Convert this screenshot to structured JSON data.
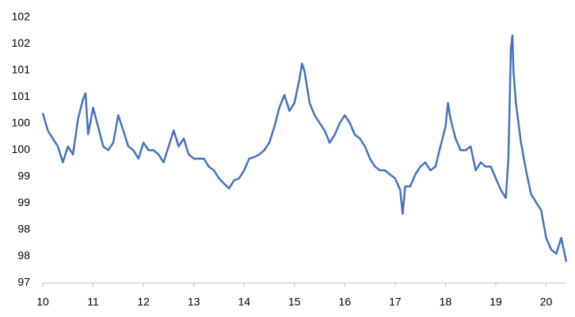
{
  "chart_data": {
    "type": "line",
    "x": [
      10,
      10.1,
      10.2,
      10.3,
      10.4,
      10.5,
      10.6,
      10.7,
      10.8,
      10.85,
      10.9,
      11,
      11.1,
      11.2,
      11.3,
      11.4,
      11.5,
      11.6,
      11.7,
      11.8,
      11.9,
      12,
      12.1,
      12.2,
      12.3,
      12.4,
      12.5,
      12.6,
      12.7,
      12.8,
      12.9,
      13,
      13.1,
      13.2,
      13.3,
      13.4,
      13.5,
      13.6,
      13.7,
      13.8,
      13.9,
      14,
      14.1,
      14.2,
      14.3,
      14.4,
      14.5,
      14.6,
      14.7,
      14.8,
      14.9,
      15,
      15.1,
      15.15,
      15.2,
      15.3,
      15.4,
      15.5,
      15.6,
      15.7,
      15.8,
      15.9,
      16,
      16.1,
      16.2,
      16.3,
      16.4,
      16.5,
      16.6,
      16.7,
      16.8,
      16.9,
      17,
      17.1,
      17.15,
      17.2,
      17.3,
      17.4,
      17.5,
      17.6,
      17.7,
      17.8,
      17.9,
      18,
      18.05,
      18.1,
      18.2,
      18.3,
      18.4,
      18.5,
      18.6,
      18.7,
      18.8,
      18.9,
      19,
      19.1,
      19.2,
      19.25,
      19.3,
      19.33,
      19.35,
      19.4,
      19.5,
      19.6,
      19.7,
      19.8,
      19.9,
      20,
      20.1,
      20.2,
      20.3,
      20.4
    ],
    "series": [
      {
        "color": "#4472c4",
        "values": [
          100.2,
          99.87,
          99.72,
          99.57,
          99.27,
          99.57,
          99.42,
          100.09,
          100.46,
          100.57,
          99.8,
          100.3,
          99.94,
          99.57,
          99.5,
          99.64,
          100.16,
          99.87,
          99.57,
          99.5,
          99.34,
          99.64,
          99.5,
          99.5,
          99.42,
          99.27,
          99.57,
          99.87,
          99.57,
          99.72,
          99.42,
          99.34,
          99.34,
          99.34,
          99.19,
          99.12,
          98.97,
          98.87,
          98.78,
          98.93,
          98.97,
          99.12,
          99.34,
          99.37,
          99.42,
          99.5,
          99.64,
          99.94,
          100.3,
          100.54,
          100.24,
          100.39,
          100.84,
          101.13,
          100.99,
          100.39,
          100.16,
          100.01,
          99.87,
          99.64,
          99.79,
          100.01,
          100.16,
          100.01,
          99.79,
          99.72,
          99.57,
          99.34,
          99.19,
          99.12,
          99.12,
          99.04,
          98.97,
          98.75,
          98.3,
          98.82,
          98.82,
          99.04,
          99.19,
          99.27,
          99.12,
          99.19,
          99.57,
          99.94,
          100.39,
          100.09,
          99.72,
          99.5,
          99.5,
          99.57,
          99.12,
          99.27,
          99.19,
          99.19,
          98.97,
          98.75,
          98.6,
          99.34,
          101.43,
          101.66,
          100.99,
          100.39,
          99.64,
          99.12,
          98.67,
          98.52,
          98.37,
          97.85,
          97.63,
          97.55,
          97.85,
          97.4
        ]
      }
    ],
    "xlim": [
      10,
      20.4
    ],
    "xticks": [
      10,
      11,
      12,
      13,
      14,
      15,
      16,
      17,
      18,
      19,
      20
    ],
    "ylim": [
      97,
      102
    ],
    "yticks": [
      97,
      {
        "value": 97.5,
        "label": "98"
      },
      98,
      {
        "value": 98.5,
        "label": "99"
      },
      99,
      {
        "value": 99.5,
        "label": "100"
      },
      100,
      {
        "value": 100.5,
        "label": "101"
      },
      101,
      {
        "value": 101.5,
        "label": "102"
      },
      102
    ]
  }
}
